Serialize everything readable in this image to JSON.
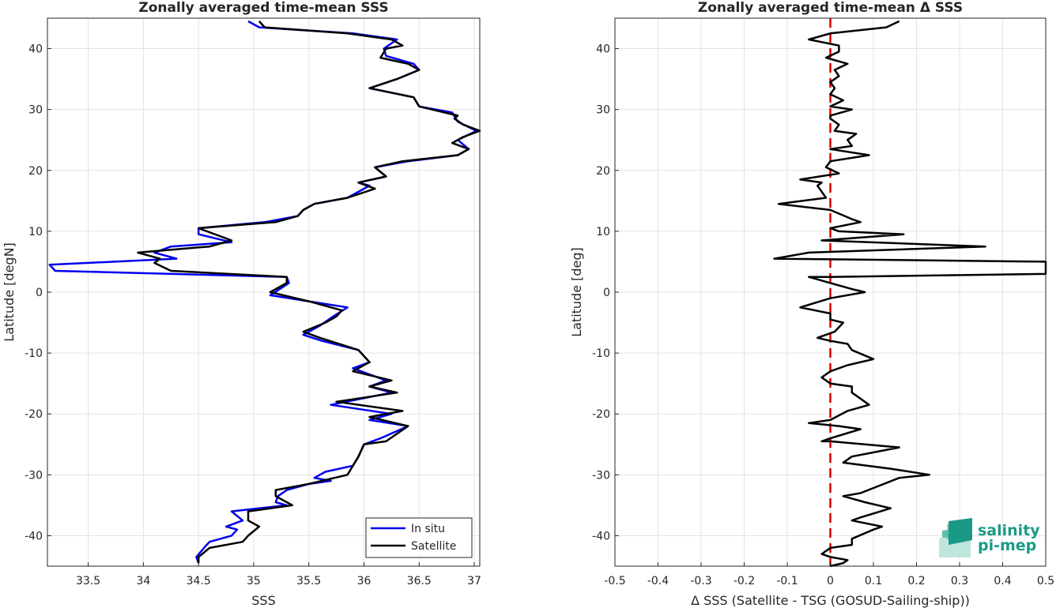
{
  "chart_data": [
    {
      "type": "line",
      "title": "Zonally averaged time-mean SSS",
      "xlabel": "SSS",
      "ylabel": "Latitude [degN]",
      "xlim": [
        33.13,
        37.05
      ],
      "ylim": [
        -45,
        45
      ],
      "xticks": [
        "33.5",
        "34",
        "34.5",
        "35",
        "35.5",
        "36",
        "36.5",
        "37"
      ],
      "xtick_values": [
        33.5,
        34,
        34.5,
        35,
        35.5,
        36,
        36.5,
        37
      ],
      "yticks": [
        "-40",
        "-30",
        "-20",
        "-10",
        "0",
        "10",
        "20",
        "30",
        "40"
      ],
      "ytick_values": [
        -40,
        -30,
        -20,
        -10,
        0,
        10,
        20,
        30,
        40
      ],
      "grid": true,
      "legend_position": "bottom-right",
      "series": [
        {
          "name": "In situ",
          "color": "#0000ee",
          "points": [
            [
              34.95,
              44.5
            ],
            [
              35.05,
              43.5
            ],
            [
              35.9,
              42.5
            ],
            [
              36.3,
              41.5
            ],
            [
              36.18,
              40
            ],
            [
              36.2,
              38.8
            ],
            [
              36.45,
              37.5
            ],
            [
              36.5,
              36.5
            ],
            [
              36.3,
              35
            ],
            [
              36.05,
              33.5
            ],
            [
              36.45,
              32
            ],
            [
              36.5,
              30.5
            ],
            [
              36.8,
              29.5
            ],
            [
              36.85,
              28
            ],
            [
              37.02,
              26.5
            ],
            [
              36.85,
              25
            ],
            [
              36.95,
              23.5
            ],
            [
              36.85,
              22.5
            ],
            [
              36.4,
              21.5
            ],
            [
              36.1,
              20.5
            ],
            [
              36.2,
              19
            ],
            [
              35.95,
              18
            ],
            [
              36.05,
              17.5
            ],
            [
              35.85,
              15.5
            ],
            [
              35.55,
              14.5
            ],
            [
              35.45,
              13.5
            ],
            [
              35.4,
              12.5
            ],
            [
              35.1,
              11.5
            ],
            [
              34.5,
              10.5
            ],
            [
              34.5,
              9.5
            ],
            [
              34.8,
              8.2
            ],
            [
              34.25,
              7.5
            ],
            [
              34.1,
              6.5
            ],
            [
              34.3,
              5.5
            ],
            [
              33.15,
              4.5
            ],
            [
              33.2,
              3.5
            ],
            [
              35.3,
              2.5
            ],
            [
              35.32,
              1.5
            ],
            [
              35.15,
              -0.5
            ],
            [
              35.5,
              -1.5
            ],
            [
              35.85,
              -2.5
            ],
            [
              35.72,
              -4
            ],
            [
              35.6,
              -5.5
            ],
            [
              35.45,
              -7
            ],
            [
              35.62,
              -8
            ],
            [
              35.95,
              -9.5
            ],
            [
              36.05,
              -11.5
            ],
            [
              35.9,
              -12.5
            ],
            [
              36.2,
              -14.5
            ],
            [
              36.05,
              -15.5
            ],
            [
              36.25,
              -16.5
            ],
            [
              35.7,
              -18.5
            ],
            [
              36.25,
              -20
            ],
            [
              36.05,
              -21
            ],
            [
              36.4,
              -22
            ],
            [
              36.15,
              -24
            ],
            [
              36.0,
              -25
            ],
            [
              35.95,
              -27
            ],
            [
              35.9,
              -28.5
            ],
            [
              35.65,
              -29.5
            ],
            [
              35.55,
              -30.5
            ],
            [
              35.7,
              -31
            ],
            [
              35.5,
              -31.5
            ],
            [
              35.3,
              -32.5
            ],
            [
              35.22,
              -33.5
            ],
            [
              35.2,
              -34.5
            ],
            [
              35.3,
              -35
            ],
            [
              34.8,
              -36
            ],
            [
              34.9,
              -37.5
            ],
            [
              34.75,
              -38.5
            ],
            [
              34.85,
              -39
            ],
            [
              34.8,
              -40
            ],
            [
              34.6,
              -41
            ],
            [
              34.55,
              -42
            ],
            [
              34.48,
              -43.5
            ],
            [
              34.5,
              -44.5
            ]
          ]
        },
        {
          "name": "Satellite",
          "color": "#000000",
          "points": [
            [
              35.05,
              44.5
            ],
            [
              35.1,
              43.5
            ],
            [
              35.85,
              42.5
            ],
            [
              36.25,
              41.5
            ],
            [
              36.35,
              40.5
            ],
            [
              36.2,
              40
            ],
            [
              36.15,
              38.5
            ],
            [
              36.4,
              37.5
            ],
            [
              36.5,
              36.5
            ],
            [
              36.3,
              35
            ],
            [
              36.05,
              33.5
            ],
            [
              36.45,
              32
            ],
            [
              36.5,
              30.5
            ],
            [
              36.85,
              29
            ],
            [
              36.82,
              28.5
            ],
            [
              36.9,
              27.5
            ],
            [
              37.05,
              26.5
            ],
            [
              36.9,
              25.5
            ],
            [
              36.8,
              24.5
            ],
            [
              36.95,
              23.5
            ],
            [
              36.85,
              22.5
            ],
            [
              36.35,
              21.5
            ],
            [
              36.1,
              20.5
            ],
            [
              36.2,
              19
            ],
            [
              35.95,
              18
            ],
            [
              36.1,
              17
            ],
            [
              35.85,
              15.5
            ],
            [
              35.55,
              14.5
            ],
            [
              35.45,
              13.5
            ],
            [
              35.4,
              12.5
            ],
            [
              35.2,
              11.5
            ],
            [
              34.5,
              10.5
            ],
            [
              34.8,
              8.5
            ],
            [
              34.6,
              7.5
            ],
            [
              33.95,
              6.5
            ],
            [
              34.15,
              5.5
            ],
            [
              34.1,
              4.8
            ],
            [
              34.25,
              3.5
            ],
            [
              35.3,
              2.5
            ],
            [
              35.3,
              1.5
            ],
            [
              35.15,
              0
            ],
            [
              35.5,
              -1.5
            ],
            [
              35.8,
              -3
            ],
            [
              35.75,
              -4
            ],
            [
              35.65,
              -5
            ],
            [
              35.45,
              -6.5
            ],
            [
              35.6,
              -7.5
            ],
            [
              35.95,
              -9.5
            ],
            [
              36.05,
              -11.5
            ],
            [
              35.9,
              -13
            ],
            [
              36.25,
              -14.5
            ],
            [
              36.05,
              -15.5
            ],
            [
              36.3,
              -16.5
            ],
            [
              35.75,
              -18
            ],
            [
              36.35,
              -19.5
            ],
            [
              36.05,
              -20.5
            ],
            [
              36.4,
              -22
            ],
            [
              36.2,
              -24.5
            ],
            [
              36.0,
              -25
            ],
            [
              35.95,
              -27
            ],
            [
              35.9,
              -28.5
            ],
            [
              35.85,
              -30
            ],
            [
              35.5,
              -31.5
            ],
            [
              35.2,
              -32.5
            ],
            [
              35.2,
              -33.5
            ],
            [
              35.35,
              -35
            ],
            [
              34.95,
              -36
            ],
            [
              34.95,
              -37.5
            ],
            [
              35.05,
              -38.5
            ],
            [
              34.95,
              -40
            ],
            [
              34.9,
              -41
            ],
            [
              34.6,
              -42
            ],
            [
              34.5,
              -43.5
            ],
            [
              34.5,
              -44.5
            ]
          ]
        }
      ]
    },
    {
      "type": "line",
      "title": "Zonally averaged time-mean Δ SSS",
      "xlabel": "Δ SSS (Satellite - TSG (GOSUD-Sailing-ship))",
      "ylabel": "Latitude [deg]",
      "xlim": [
        -0.5,
        0.5
      ],
      "ylim": [
        -45,
        45
      ],
      "xticks": [
        "-0.5",
        "-0.4",
        "-0.3",
        "-0.2",
        "-0.1",
        "0",
        "0.1",
        "0.2",
        "0.3",
        "0.4",
        "0.5"
      ],
      "xtick_values": [
        -0.5,
        -0.4,
        -0.3,
        -0.2,
        -0.1,
        0,
        0.1,
        0.2,
        0.3,
        0.4,
        0.5
      ],
      "yticks": [
        "-40",
        "-30",
        "-20",
        "-10",
        "0",
        "10",
        "20",
        "30",
        "40"
      ],
      "ytick_values": [
        -40,
        -30,
        -20,
        -10,
        0,
        10,
        20,
        30,
        40
      ],
      "grid": true,
      "zero_line": {
        "x": 0,
        "color": "#dd0000",
        "style": "dashed"
      },
      "series": [
        {
          "color": "#000000",
          "points": [
            [
              0.16,
              44.5
            ],
            [
              0.13,
              43.5
            ],
            [
              0.0,
              42.5
            ],
            [
              -0.05,
              41.5
            ],
            [
              0.02,
              40.5
            ],
            [
              0.02,
              39.5
            ],
            [
              -0.01,
              38.5
            ],
            [
              0.04,
              37.5
            ],
            [
              0.01,
              36.5
            ],
            [
              0.02,
              35.5
            ],
            [
              0.0,
              34.5
            ],
            [
              0.01,
              33.5
            ],
            [
              0.0,
              32.5
            ],
            [
              0.03,
              31.5
            ],
            [
              0.0,
              30.5
            ],
            [
              0.05,
              30
            ],
            [
              0.0,
              29
            ],
            [
              0.0,
              28.5
            ],
            [
              0.02,
              27.5
            ],
            [
              0.01,
              26.5
            ],
            [
              0.06,
              26
            ],
            [
              0.04,
              25
            ],
            [
              0.05,
              24
            ],
            [
              0.0,
              23.5
            ],
            [
              0.09,
              22.5
            ],
            [
              0.0,
              21.5
            ],
            [
              -0.01,
              20.5
            ],
            [
              0.02,
              19.5
            ],
            [
              -0.07,
              18.5
            ],
            [
              -0.02,
              18
            ],
            [
              -0.03,
              17.5
            ],
            [
              -0.02,
              16.5
            ],
            [
              -0.01,
              15.5
            ],
            [
              -0.12,
              14.5
            ],
            [
              0.0,
              13.5
            ],
            [
              0.05,
              12
            ],
            [
              0.07,
              11.5
            ],
            [
              0.0,
              10.5
            ],
            [
              0.02,
              10
            ],
            [
              0.17,
              9.5
            ],
            [
              -0.02,
              8.5
            ],
            [
              0.36,
              7.5
            ],
            [
              -0.05,
              6.5
            ],
            [
              -0.13,
              5.5
            ],
            [
              0.5,
              5
            ],
            [
              0.5,
              3
            ],
            [
              0.0,
              2.5
            ],
            [
              -0.05,
              2.5
            ],
            [
              0.0,
              1.5
            ],
            [
              0.05,
              0.5
            ],
            [
              0.08,
              0
            ],
            [
              0.0,
              -1
            ],
            [
              -0.07,
              -2.5
            ],
            [
              0.0,
              -3.5
            ],
            [
              0.0,
              -4.5
            ],
            [
              0.03,
              -5
            ],
            [
              0.01,
              -6.5
            ],
            [
              -0.03,
              -7.5
            ],
            [
              0.0,
              -8
            ],
            [
              0.04,
              -8.5
            ],
            [
              0.05,
              -9.5
            ],
            [
              0.1,
              -11
            ],
            [
              0.04,
              -12
            ],
            [
              0.0,
              -13
            ],
            [
              -0.02,
              -14
            ],
            [
              0.0,
              -15
            ],
            [
              0.05,
              -15.5
            ],
            [
              0.05,
              -16.5
            ],
            [
              0.07,
              -17.5
            ],
            [
              0.09,
              -18.5
            ],
            [
              0.04,
              -19.5
            ],
            [
              0.0,
              -21
            ],
            [
              -0.05,
              -21.5
            ],
            [
              0.02,
              -22
            ],
            [
              0.07,
              -22.5
            ],
            [
              0.0,
              -24
            ],
            [
              -0.02,
              -24.5
            ],
            [
              0.0,
              -24.5
            ],
            [
              0.16,
              -25.5
            ],
            [
              0.05,
              -27
            ],
            [
              0.03,
              -28
            ],
            [
              0.14,
              -29
            ],
            [
              0.23,
              -30
            ],
            [
              0.16,
              -30.5
            ],
            [
              0.07,
              -33
            ],
            [
              0.03,
              -33.5
            ],
            [
              0.08,
              -34.5
            ],
            [
              0.14,
              -35.5
            ],
            [
              0.07,
              -37
            ],
            [
              0.05,
              -37.5
            ],
            [
              0.12,
              -38.5
            ],
            [
              0.1,
              -39
            ],
            [
              0.05,
              -40.5
            ],
            [
              0.05,
              -41.5
            ],
            [
              0.0,
              -42
            ],
            [
              -0.02,
              -43
            ],
            [
              0.0,
              -43.5
            ],
            [
              0.04,
              -44
            ],
            [
              0.03,
              -44.5
            ],
            [
              0.0,
              -45
            ]
          ]
        }
      ]
    }
  ],
  "legend": {
    "entries": [
      {
        "label": "In situ",
        "color": "#0000ee"
      },
      {
        "label": "Satellite",
        "color": "#000000"
      }
    ]
  },
  "logo": {
    "line1": "salinity",
    "line2": "pi-mep",
    "color": "#1a9a86"
  }
}
